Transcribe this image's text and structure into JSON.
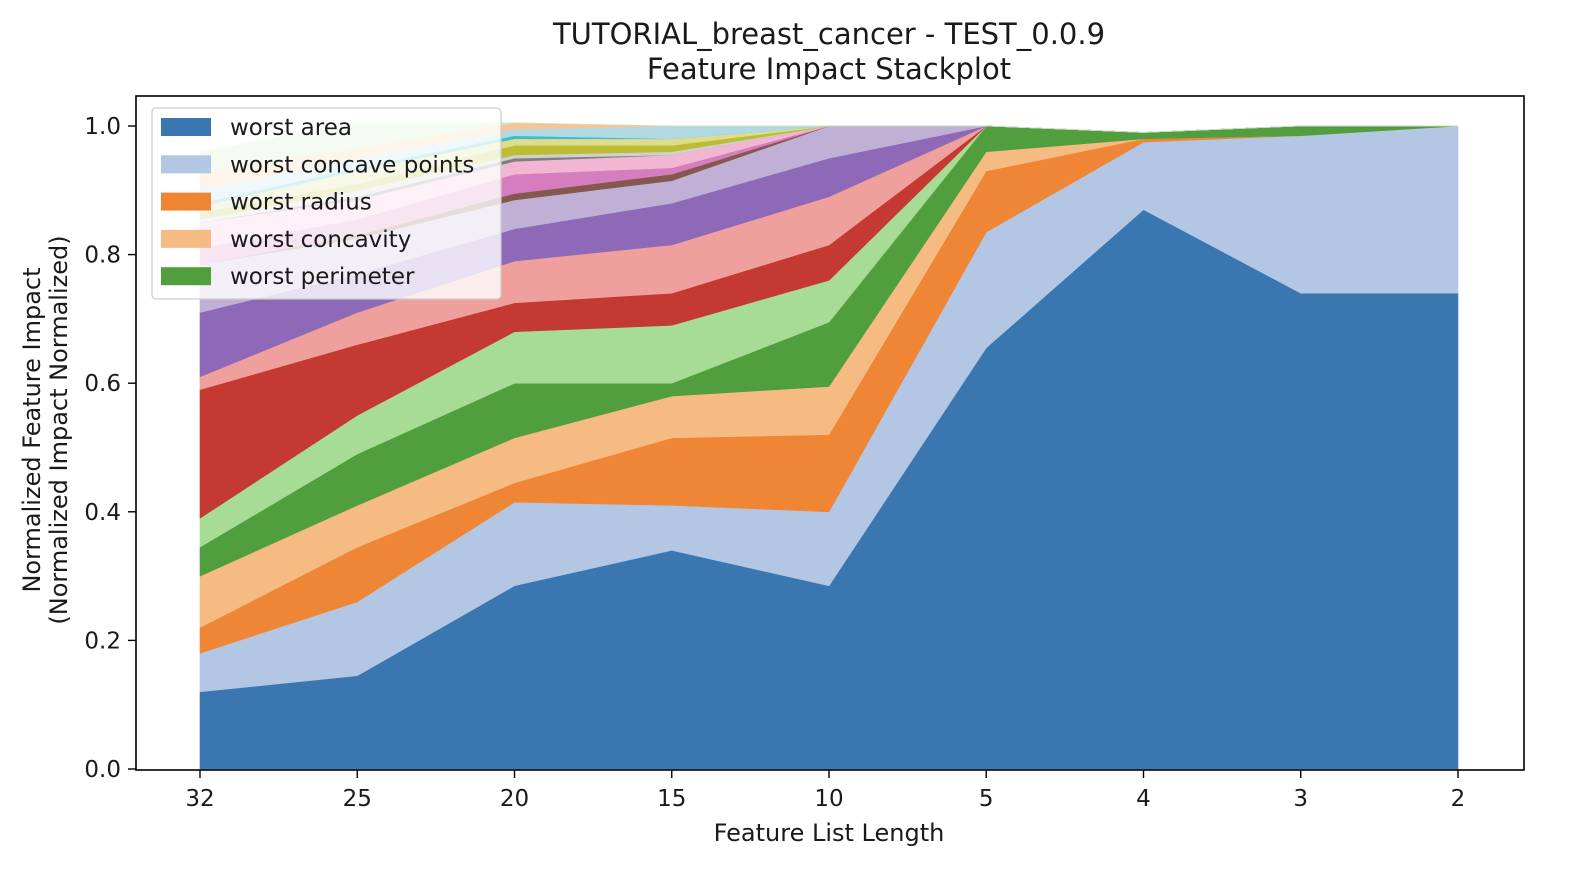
{
  "chart_data": {
    "type": "area",
    "title": "TUTORIAL_breast_cancer - TEST_0.0.9",
    "subtitle": "Feature Impact Stackplot",
    "xlabel": "Feature List Length",
    "ylabel_line1": "Normalized Feature Impact",
    "ylabel_line2": "(Normalized Impact Normalized)",
    "categories": [
      "32",
      "25",
      "20",
      "15",
      "10",
      "5",
      "4",
      "3",
      "2"
    ],
    "ylim": [
      0,
      1.0
    ],
    "yticks": [
      "0.0",
      "0.2",
      "0.4",
      "0.6",
      "0.8",
      "1.0"
    ],
    "legend_position": "top-left",
    "legend_count": 5,
    "series": [
      {
        "name": "worst area",
        "color": "#3a77b0",
        "values": [
          0.12,
          0.145,
          0.285,
          0.34,
          0.285,
          0.655,
          0.87,
          0.74,
          0.74
        ]
      },
      {
        "name": "worst concave points",
        "color": "#b3c6e3",
        "values": [
          0.06,
          0.115,
          0.13,
          0.07,
          0.115,
          0.18,
          0.105,
          0.245,
          0.26
        ]
      },
      {
        "name": "worst radius",
        "color": "#ef8636",
        "values": [
          0.04,
          0.085,
          0.03,
          0.105,
          0.12,
          0.095,
          0.005,
          0.0,
          0.0
        ]
      },
      {
        "name": "worst concavity",
        "color": "#f5bb82",
        "values": [
          0.08,
          0.065,
          0.07,
          0.065,
          0.075,
          0.03,
          0.0,
          0.0,
          0.0
        ]
      },
      {
        "name": "worst perimeter",
        "color": "#519e3e",
        "values": [
          0.045,
          0.08,
          0.085,
          0.02,
          0.1,
          0.04,
          0.01,
          0.015,
          0.0
        ]
      },
      {
        "name": "",
        "color": "#a7dc94",
        "values": [
          0.045,
          0.06,
          0.08,
          0.09,
          0.065,
          0.0,
          0.0,
          0.0,
          0.0
        ]
      },
      {
        "name": "",
        "color": "#c43932",
        "values": [
          0.2,
          0.11,
          0.045,
          0.05,
          0.055,
          0.0,
          0.0,
          0.0,
          0.0
        ]
      },
      {
        "name": "",
        "color": "#f0a09c",
        "values": [
          0.02,
          0.05,
          0.065,
          0.075,
          0.075,
          0.0,
          0.0,
          0.0,
          0.0
        ]
      },
      {
        "name": "",
        "color": "#8d69b8",
        "values": [
          0.1,
          0.06,
          0.05,
          0.065,
          0.06,
          0.0,
          0.0,
          0.0,
          0.0
        ]
      },
      {
        "name": "",
        "color": "#c0b0d5",
        "values": [
          0.075,
          0.055,
          0.045,
          0.035,
          0.05,
          0.0,
          0.0,
          0.0,
          0.0
        ]
      },
      {
        "name": "",
        "color": "#84584e",
        "values": [
          0.0,
          0.005,
          0.01,
          0.01,
          0.0,
          0.0,
          0.0,
          0.0,
          0.0
        ]
      },
      {
        "name": "",
        "color": "#d57dbe",
        "values": [
          0.025,
          0.025,
          0.03,
          0.01,
          0.0,
          0.0,
          0.0,
          0.0,
          0.0
        ]
      },
      {
        "name": "",
        "color": "#f2b6d2",
        "values": [
          0.04,
          0.03,
          0.02,
          0.02,
          0.0,
          0.0,
          0.0,
          0.0,
          0.0
        ]
      },
      {
        "name": "",
        "color": "#7f7f7f",
        "values": [
          0.0,
          0.005,
          0.005,
          0.0,
          0.0,
          0.0,
          0.0,
          0.0,
          0.0
        ]
      },
      {
        "name": "",
        "color": "#d0d0d0",
        "values": [
          0.005,
          0.01,
          0.005,
          0.005,
          0.0,
          0.0,
          0.0,
          0.0,
          0.0
        ]
      },
      {
        "name": "",
        "color": "#bcbc35",
        "values": [
          0.01,
          0.01,
          0.015,
          0.01,
          0.0,
          0.0,
          0.0,
          0.0,
          0.0
        ]
      },
      {
        "name": "",
        "color": "#dddd8d",
        "values": [
          0.01,
          0.02,
          0.01,
          0.01,
          0.0,
          0.0,
          0.0,
          0.0,
          0.0
        ]
      },
      {
        "name": "",
        "color": "#40bccd",
        "values": [
          0.005,
          0.005,
          0.005,
          0.0,
          0.0,
          0.0,
          0.0,
          0.0,
          0.0
        ]
      },
      {
        "name": "",
        "color": "#b1d9e3",
        "values": [
          0.02,
          0.015,
          0.01,
          0.02,
          0.0,
          0.0,
          0.0,
          0.0,
          0.0
        ]
      },
      {
        "name": "",
        "color": "#f6c596",
        "values": [
          0.03,
          0.015,
          0.01,
          0.0,
          0.0,
          0.0,
          0.0,
          0.0,
          0.0
        ]
      },
      {
        "name": "",
        "color": "#c9e8c4",
        "values": [
          0.03,
          0.04,
          0.0,
          0.0,
          0.0,
          0.0,
          0.0,
          0.0,
          0.0
        ]
      }
    ]
  }
}
